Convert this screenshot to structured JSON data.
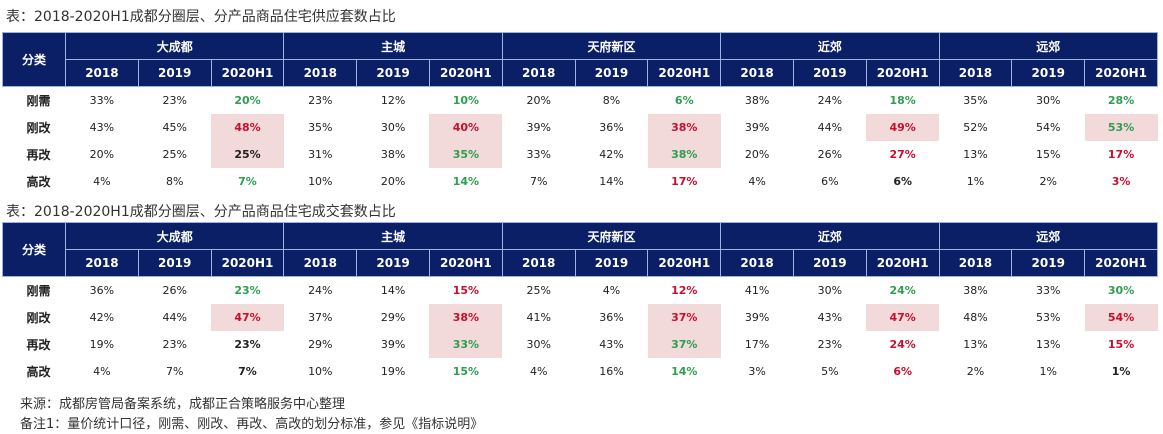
{
  "colors": {
    "header_bg": "#0b1f66",
    "green": "#2e9e4f",
    "red": "#c8102e",
    "black": "#222222",
    "highlight": "#f2d9da"
  },
  "category_header": "分类",
  "groups": [
    "大成都",
    "主城",
    "天府新区",
    "近郊",
    "远郊"
  ],
  "years": [
    "2018",
    "2019",
    "2020H1"
  ],
  "tables": [
    {
      "title": "表：2018-2020H1成都分圈层、分产品商品住宅供应套数占比",
      "rows": [
        {
          "label": "刚需",
          "cells": [
            [
              "33%",
              "k",
              0
            ],
            [
              "23%",
              "k",
              0
            ],
            [
              "20%",
              "g",
              0
            ],
            [
              "23%",
              "k",
              0
            ],
            [
              "12%",
              "k",
              0
            ],
            [
              "10%",
              "g",
              0
            ],
            [
              "20%",
              "k",
              0
            ],
            [
              "8%",
              "k",
              0
            ],
            [
              "6%",
              "g",
              0
            ],
            [
              "38%",
              "k",
              0
            ],
            [
              "24%",
              "k",
              0
            ],
            [
              "18%",
              "g",
              0
            ],
            [
              "35%",
              "k",
              0
            ],
            [
              "30%",
              "k",
              0
            ],
            [
              "28%",
              "g",
              0
            ]
          ]
        },
        {
          "label": "刚改",
          "cells": [
            [
              "43%",
              "k",
              0
            ],
            [
              "45%",
              "k",
              0
            ],
            [
              "48%",
              "r",
              1
            ],
            [
              "35%",
              "k",
              0
            ],
            [
              "30%",
              "k",
              0
            ],
            [
              "40%",
              "r",
              1
            ],
            [
              "39%",
              "k",
              0
            ],
            [
              "36%",
              "k",
              0
            ],
            [
              "38%",
              "r",
              1
            ],
            [
              "39%",
              "k",
              0
            ],
            [
              "44%",
              "k",
              0
            ],
            [
              "49%",
              "r",
              1
            ],
            [
              "52%",
              "k",
              0
            ],
            [
              "54%",
              "k",
              0
            ],
            [
              "53%",
              "g",
              1
            ]
          ]
        },
        {
          "label": "再改",
          "cells": [
            [
              "20%",
              "k",
              0
            ],
            [
              "25%",
              "k",
              0
            ],
            [
              "25%",
              "k",
              1
            ],
            [
              "31%",
              "k",
              0
            ],
            [
              "38%",
              "k",
              0
            ],
            [
              "35%",
              "g",
              1
            ],
            [
              "33%",
              "k",
              0
            ],
            [
              "42%",
              "k",
              0
            ],
            [
              "38%",
              "g",
              1
            ],
            [
              "20%",
              "k",
              0
            ],
            [
              "26%",
              "k",
              0
            ],
            [
              "27%",
              "r",
              0
            ],
            [
              "13%",
              "k",
              0
            ],
            [
              "15%",
              "k",
              0
            ],
            [
              "17%",
              "r",
              0
            ]
          ]
        },
        {
          "label": "高改",
          "cells": [
            [
              "4%",
              "k",
              0
            ],
            [
              "8%",
              "k",
              0
            ],
            [
              "7%",
              "g",
              0
            ],
            [
              "10%",
              "k",
              0
            ],
            [
              "20%",
              "k",
              0
            ],
            [
              "14%",
              "g",
              0
            ],
            [
              "7%",
              "k",
              0
            ],
            [
              "14%",
              "k",
              0
            ],
            [
              "17%",
              "r",
              0
            ],
            [
              "4%",
              "k",
              0
            ],
            [
              "6%",
              "k",
              0
            ],
            [
              "6%",
              "k",
              0
            ],
            [
              "1%",
              "k",
              0
            ],
            [
              "2%",
              "k",
              0
            ],
            [
              "3%",
              "r",
              0
            ]
          ]
        }
      ]
    },
    {
      "title": "表：2018-2020H1成都分圈层、分产品商品住宅成交套数占比",
      "rows": [
        {
          "label": "刚需",
          "cells": [
            [
              "36%",
              "k",
              0
            ],
            [
              "26%",
              "k",
              0
            ],
            [
              "23%",
              "g",
              0
            ],
            [
              "24%",
              "k",
              0
            ],
            [
              "14%",
              "k",
              0
            ],
            [
              "15%",
              "r",
              0
            ],
            [
              "25%",
              "k",
              0
            ],
            [
              "4%",
              "k",
              0
            ],
            [
              "12%",
              "r",
              0
            ],
            [
              "41%",
              "k",
              0
            ],
            [
              "30%",
              "k",
              0
            ],
            [
              "24%",
              "g",
              0
            ],
            [
              "38%",
              "k",
              0
            ],
            [
              "33%",
              "k",
              0
            ],
            [
              "30%",
              "g",
              0
            ]
          ]
        },
        {
          "label": "刚改",
          "cells": [
            [
              "42%",
              "k",
              0
            ],
            [
              "44%",
              "k",
              0
            ],
            [
              "47%",
              "r",
              1
            ],
            [
              "37%",
              "k",
              0
            ],
            [
              "29%",
              "k",
              0
            ],
            [
              "38%",
              "r",
              1
            ],
            [
              "41%",
              "k",
              0
            ],
            [
              "36%",
              "k",
              0
            ],
            [
              "37%",
              "r",
              1
            ],
            [
              "39%",
              "k",
              0
            ],
            [
              "43%",
              "k",
              0
            ],
            [
              "47%",
              "r",
              1
            ],
            [
              "48%",
              "k",
              0
            ],
            [
              "53%",
              "k",
              0
            ],
            [
              "54%",
              "r",
              1
            ]
          ]
        },
        {
          "label": "再改",
          "cells": [
            [
              "19%",
              "k",
              0
            ],
            [
              "23%",
              "k",
              0
            ],
            [
              "23%",
              "k",
              0
            ],
            [
              "29%",
              "k",
              0
            ],
            [
              "39%",
              "k",
              0
            ],
            [
              "33%",
              "g",
              1
            ],
            [
              "30%",
              "k",
              0
            ],
            [
              "43%",
              "k",
              0
            ],
            [
              "37%",
              "g",
              1
            ],
            [
              "17%",
              "k",
              0
            ],
            [
              "23%",
              "k",
              0
            ],
            [
              "24%",
              "r",
              0
            ],
            [
              "13%",
              "k",
              0
            ],
            [
              "13%",
              "k",
              0
            ],
            [
              "15%",
              "r",
              0
            ]
          ]
        },
        {
          "label": "高改",
          "cells": [
            [
              "4%",
              "k",
              0
            ],
            [
              "7%",
              "k",
              0
            ],
            [
              "7%",
              "k",
              0
            ],
            [
              "10%",
              "k",
              0
            ],
            [
              "19%",
              "k",
              0
            ],
            [
              "15%",
              "g",
              0
            ],
            [
              "4%",
              "k",
              0
            ],
            [
              "16%",
              "k",
              0
            ],
            [
              "14%",
              "g",
              0
            ],
            [
              "3%",
              "k",
              0
            ],
            [
              "5%",
              "k",
              0
            ],
            [
              "6%",
              "r",
              0
            ],
            [
              "2%",
              "k",
              0
            ],
            [
              "1%",
              "k",
              0
            ],
            [
              "1%",
              "k",
              0
            ]
          ]
        }
      ]
    }
  ],
  "footer": {
    "source": "来源：成都房管局备案系统，成都正合策略服务中心整理",
    "note": "备注1：量价统计口径，刚需、刚改、再改、高改的划分标准，参见《指标说明》"
  }
}
